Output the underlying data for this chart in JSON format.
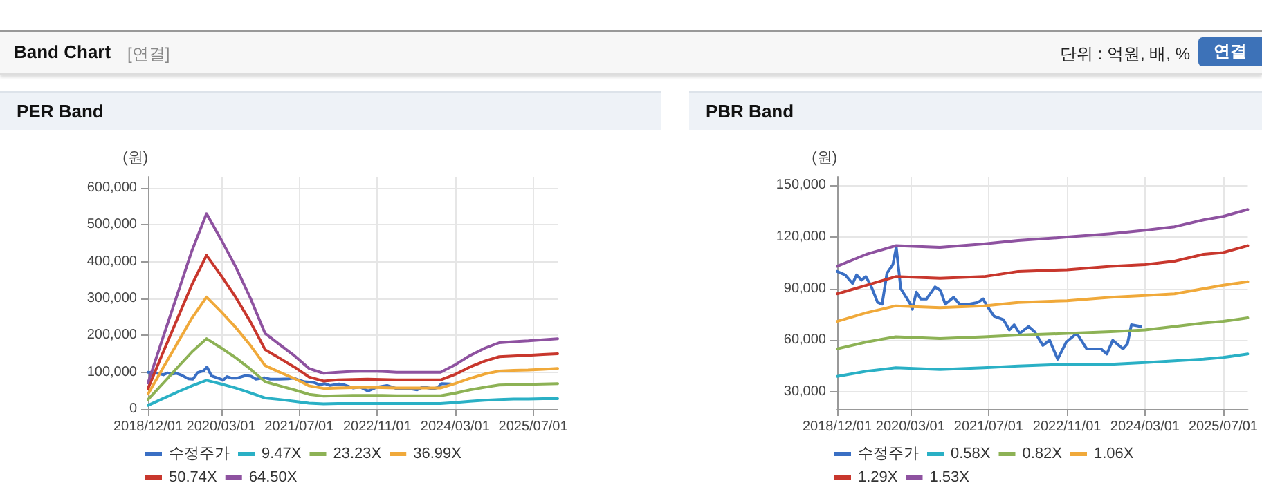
{
  "chart_data": [
    {
      "type": "other",
      "title": "Band Chart",
      "annotations": [
        "[연결]",
        "단위 : 억원, 배, %",
        "연결"
      ]
    },
    {
      "type": "line",
      "title": "PER Band",
      "ylabel": "(원)",
      "marker": "none",
      "grid": true,
      "legend": "bottom",
      "x": [
        "2018-12-01",
        "2019-03-01",
        "2019-06-01",
        "2019-09-01",
        "2019-12-01",
        "2020-03-01",
        "2020-06-01",
        "2020-09-01",
        "2020-12-01",
        "2021-03-01",
        "2021-06-01",
        "2021-09-01",
        "2021-12-01",
        "2022-03-01",
        "2022-06-01",
        "2022-09-01",
        "2022-12-01",
        "2023-03-01",
        "2023-06-01",
        "2023-09-01",
        "2023-12-01",
        "2024-03-01",
        "2024-06-01",
        "2024-09-01",
        "2024-12-01",
        "2025-03-01",
        "2025-06-01",
        "2025-09-01",
        "2025-12-01"
      ],
      "xlim": [
        "2018-12-01",
        "2025-12-01"
      ],
      "xticks": [
        {
          "value": "2018-12-01",
          "label": "2018/12/01"
        },
        {
          "value": "2020-03-01",
          "label": "2020/03/01"
        },
        {
          "value": "2021-07-01",
          "label": "2021/07/01"
        },
        {
          "value": "2022-11-01",
          "label": "2022/11/01"
        },
        {
          "value": "2024-03-01",
          "label": "2024/03/01"
        },
        {
          "value": "2025-07-01",
          "label": "2025/07/01"
        }
      ],
      "ylim": [
        0,
        630000
      ],
      "yticks": [
        {
          "value": 0,
          "label": "0"
        },
        {
          "value": 100000,
          "label": "100,000"
        },
        {
          "value": 200000,
          "label": "200,000"
        },
        {
          "value": 300000,
          "label": "300,000"
        },
        {
          "value": 400000,
          "label": "400,000"
        },
        {
          "value": 500000,
          "label": "500,000"
        },
        {
          "value": 600000,
          "label": "600,000"
        }
      ],
      "series": [
        {
          "name": "수정주가",
          "color": "#3a6fc4",
          "x": [
            "2018-12-01",
            "2019-01-20",
            "2019-03-07",
            "2019-04-01",
            "2019-05-01",
            "2019-05-28",
            "2019-06-28",
            "2019-08-10",
            "2019-09-07",
            "2019-10-07",
            "2019-11-13",
            "2019-12-04",
            "2020-01-01",
            "2020-03-01",
            "2020-03-13",
            "2020-04-07",
            "2020-05-04",
            "2020-06-10",
            "2020-08-01",
            "2020-09-04",
            "2020-10-04",
            "2020-11-25",
            "2021-01-01",
            "2021-02-28",
            "2021-04-25",
            "2021-05-28",
            "2021-06-21",
            "2021-08-04",
            "2021-10-01",
            "2021-11-07",
            "2021-12-07",
            "2022-01-10",
            "2022-03-07",
            "2022-04-13",
            "2022-06-04",
            "2022-07-16",
            "2022-09-04",
            "2022-10-28",
            "2023-01-01",
            "2023-03-04",
            "2023-06-01",
            "2023-07-07",
            "2023-08-13",
            "2023-10-16",
            "2023-11-13",
            "2023-12-07",
            "2024-02-04"
          ],
          "values": [
            100000,
            98000,
            93000,
            98000,
            95000,
            97000,
            92000,
            82000,
            81000,
            99000,
            104000,
            114000,
            90000,
            81000,
            78000,
            88000,
            84000,
            84000,
            91000,
            89000,
            81000,
            85000,
            81000,
            81000,
            82000,
            84000,
            80000,
            74000,
            72000,
            66000,
            69000,
            64000,
            68000,
            65000,
            57000,
            60000,
            49000,
            59000,
            64000,
            55000,
            55000,
            52000,
            60000,
            55000,
            58000,
            69000,
            68000
          ]
        },
        {
          "name": "9.47X",
          "color": "#2ab0c5",
          "values": [
            10000,
            28000,
            46000,
            63000,
            78000,
            68000,
            57000,
            44000,
            30000,
            26000,
            21000,
            16000,
            14000,
            15000,
            15000,
            15000,
            15000,
            15000,
            15000,
            15000,
            15000,
            18000,
            21000,
            24000,
            26000,
            27000,
            27000,
            28000,
            28000
          ]
        },
        {
          "name": "23.23X",
          "color": "#8db255",
          "values": [
            26000,
            68000,
            112000,
            155000,
            191000,
            166000,
            139000,
            108000,
            74000,
            63000,
            52000,
            40000,
            35000,
            36000,
            37000,
            37000,
            37000,
            36000,
            36000,
            36000,
            36000,
            43000,
            52000,
            59000,
            65000,
            66000,
            67000,
            68000,
            69000
          ]
        },
        {
          "name": "36.99X",
          "color": "#f0a93a",
          "values": [
            41000,
            109000,
            178000,
            247000,
            304000,
            264000,
            221000,
            172000,
            118000,
            100000,
            83000,
            63000,
            56000,
            57000,
            58000,
            59000,
            58000,
            57000,
            57000,
            57000,
            57000,
            69000,
            83000,
            95000,
            103000,
            105000,
            106000,
            108000,
            110000
          ]
        },
        {
          "name": "50.74X",
          "color": "#c8372d",
          "values": [
            56000,
            150000,
            244000,
            338000,
            417000,
            362000,
            303000,
            236000,
            161000,
            138000,
            114000,
            87000,
            76000,
            79000,
            80000,
            81000,
            80000,
            79000,
            79000,
            79000,
            79000,
            94000,
            114000,
            130000,
            142000,
            144000,
            146000,
            148000,
            150000
          ]
        },
        {
          "name": "64.50X",
          "color": "#8e52a0",
          "values": [
            71000,
            190000,
            310000,
            430000,
            530000,
            460000,
            385000,
            300000,
            205000,
            175000,
            145000,
            110000,
            97000,
            100000,
            102000,
            103000,
            102000,
            100000,
            100000,
            100000,
            100000,
            120000,
            145000,
            165000,
            180000,
            183000,
            185000,
            188000,
            191000
          ]
        }
      ]
    },
    {
      "type": "line",
      "title": "PBR Band",
      "ylabel": "(원)",
      "marker": "none",
      "grid": true,
      "legend": "bottom",
      "x": [
        "2018-12-01",
        "2019-06-01",
        "2019-12-01",
        "2020-09-01",
        "2021-06-01",
        "2022-01-01",
        "2022-11-01",
        "2023-08-01",
        "2024-03-01",
        "2024-09-01",
        "2025-03-01",
        "2025-07-01",
        "2025-12-01"
      ],
      "xlim": [
        "2018-12-01",
        "2025-12-01"
      ],
      "xticks": [
        {
          "value": "2018-12-01",
          "label": "2018/12/01"
        },
        {
          "value": "2020-03-01",
          "label": "2020/03/01"
        },
        {
          "value": "2021-07-01",
          "label": "2021/07/01"
        },
        {
          "value": "2022-11-01",
          "label": "2022/11/01"
        },
        {
          "value": "2024-03-01",
          "label": "2024/03/01"
        },
        {
          "value": "2025-07-01",
          "label": "2025/07/01"
        }
      ],
      "ylim": [
        20000,
        155000
      ],
      "yticks": [
        {
          "value": 30000,
          "label": "30,000"
        },
        {
          "value": 60000,
          "label": "60,000"
        },
        {
          "value": 90000,
          "label": "90,000"
        },
        {
          "value": 120000,
          "label": "120,000"
        },
        {
          "value": 150000,
          "label": "150,000"
        }
      ],
      "series": [
        {
          "name": "수정주가",
          "color": "#3a6fc4",
          "x": [
            "2018-12-01",
            "2019-01-20",
            "2019-03-07",
            "2019-04-01",
            "2019-05-01",
            "2019-05-28",
            "2019-06-28",
            "2019-08-10",
            "2019-09-07",
            "2019-10-07",
            "2019-11-13",
            "2019-12-04",
            "2020-01-01",
            "2020-03-01",
            "2020-03-13",
            "2020-04-07",
            "2020-05-04",
            "2020-06-10",
            "2020-08-01",
            "2020-09-04",
            "2020-10-04",
            "2020-11-25",
            "2021-01-01",
            "2021-02-28",
            "2021-04-25",
            "2021-05-28",
            "2021-06-21",
            "2021-08-04",
            "2021-10-01",
            "2021-11-07",
            "2021-12-07",
            "2022-01-10",
            "2022-03-07",
            "2022-04-13",
            "2022-06-04",
            "2022-07-16",
            "2022-09-04",
            "2022-10-28",
            "2023-01-01",
            "2023-03-04",
            "2023-06-01",
            "2023-07-07",
            "2023-08-13",
            "2023-10-16",
            "2023-11-13",
            "2023-12-07",
            "2024-02-04"
          ],
          "values": [
            100000,
            98000,
            93000,
            98000,
            95000,
            97000,
            92000,
            82000,
            81000,
            99000,
            104000,
            114000,
            90000,
            81000,
            78000,
            88000,
            84000,
            84000,
            91000,
            89000,
            81000,
            85000,
            81000,
            81000,
            82000,
            84000,
            80000,
            74000,
            72000,
            66000,
            69000,
            64000,
            68000,
            65000,
            57000,
            60000,
            49000,
            59000,
            64000,
            55000,
            55000,
            52000,
            60000,
            55000,
            58000,
            69000,
            68000
          ]
        },
        {
          "name": "0.58X",
          "color": "#2ab0c5",
          "values": [
            39000,
            42000,
            44000,
            43000,
            44000,
            45000,
            46000,
            46000,
            47000,
            48000,
            49000,
            50000,
            52000
          ]
        },
        {
          "name": "0.82X",
          "color": "#8db255",
          "values": [
            55000,
            59000,
            62000,
            61000,
            62000,
            63000,
            64000,
            65000,
            66000,
            68000,
            70000,
            71000,
            73000
          ]
        },
        {
          "name": "1.06X",
          "color": "#f0a93a",
          "values": [
            71000,
            76000,
            80000,
            79000,
            80000,
            82000,
            83000,
            85000,
            86000,
            87000,
            90000,
            92000,
            94000
          ]
        },
        {
          "name": "1.29X",
          "color": "#c8372d",
          "values": [
            87000,
            92000,
            97000,
            96000,
            97000,
            100000,
            101000,
            103000,
            104000,
            106000,
            110000,
            111000,
            115000
          ]
        },
        {
          "name": "1.53X",
          "color": "#8e52a0",
          "values": [
            103000,
            110000,
            115000,
            114000,
            116000,
            118000,
            120000,
            122000,
            124000,
            126000,
            130000,
            132000,
            136000
          ]
        }
      ]
    }
  ]
}
